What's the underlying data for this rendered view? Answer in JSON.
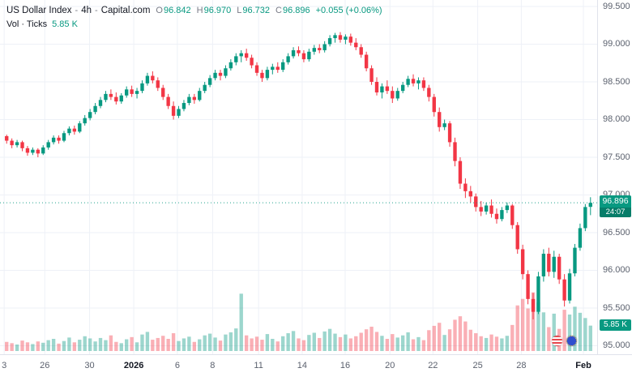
{
  "header": {
    "symbol": "US Dollar Index",
    "sep": "-",
    "interval": "4h",
    "provider": "Capital.com",
    "ohlc": [
      {
        "label": "O",
        "value": "96.842"
      },
      {
        "label": "H",
        "value": "96.970"
      },
      {
        "label": "L",
        "value": "96.732"
      },
      {
        "label": "C",
        "value": "96.896"
      }
    ],
    "change": "+0.055 (+0.06%)"
  },
  "volume_indicator": {
    "label": "Vol · Ticks",
    "value": "5.85 K"
  },
  "price_axis": {
    "price_badge": {
      "price": "96.896",
      "countdown": "24:07"
    },
    "volume_badge": "5.85 K"
  },
  "time_axis": {
    "labels": [
      {
        "t": "3",
        "p": 0.007
      },
      {
        "t": "26",
        "p": 0.075
      },
      {
        "t": "30",
        "p": 0.15
      },
      {
        "t": "2026",
        "p": 0.224,
        "major": true
      },
      {
        "t": "6",
        "p": 0.297
      },
      {
        "t": "8",
        "p": 0.356
      },
      {
        "t": "11",
        "p": 0.433
      },
      {
        "t": "14",
        "p": 0.506
      },
      {
        "t": "16",
        "p": 0.578
      },
      {
        "t": "20",
        "p": 0.653
      },
      {
        "t": "22",
        "p": 0.725
      },
      {
        "t": "25",
        "p": 0.8
      },
      {
        "t": "28",
        "p": 0.873
      },
      {
        "t": "Feb",
        "p": 0.977,
        "major": true
      }
    ]
  },
  "icons": {
    "us_event": "us-flag-circle",
    "eu_event": "eu-flag-circle"
  },
  "colors": {
    "up": "#089981",
    "down": "#f23645",
    "vol_up": "rgba(8,153,129,0.40)",
    "vol_down": "rgba(242,54,69,0.40)",
    "grid": "#eef1f7",
    "axis_text": "#5b616e",
    "background": "#ffffff"
  },
  "chart_data": {
    "type": "candlestick",
    "title": "US Dollar Index - 4h - Capital.com",
    "current_price": "96.896",
    "price_line": 96.896,
    "y_axis": {
      "max": 99.5,
      "min": 95.0,
      "ticks": [
        "99.500",
        "99.000",
        "98.500",
        "98.000",
        "97.500",
        "97.000",
        "96.500",
        "96.000",
        "95.500",
        "95.000"
      ]
    },
    "volume_axis": {
      "max": 14
    },
    "last_candle": {
      "o": 96.842,
      "h": 96.97,
      "l": 96.732,
      "c": 96.896,
      "volume_k": 5.85
    },
    "candles": [
      [
        97.78,
        97.8,
        97.68,
        97.72,
        2.1
      ],
      [
        97.72,
        97.75,
        97.62,
        97.66,
        1.8
      ],
      [
        97.66,
        97.73,
        97.63,
        97.7,
        1.5
      ],
      [
        97.7,
        97.72,
        97.58,
        97.62,
        2.4
      ],
      [
        97.62,
        97.65,
        97.52,
        97.56,
        2.0
      ],
      [
        97.56,
        97.63,
        97.53,
        97.6,
        1.6
      ],
      [
        97.6,
        97.62,
        97.5,
        97.55,
        2.2
      ],
      [
        97.55,
        97.66,
        97.53,
        97.63,
        1.9
      ],
      [
        97.63,
        97.73,
        97.6,
        97.7,
        2.5
      ],
      [
        97.7,
        97.79,
        97.67,
        97.76,
        2.8
      ],
      [
        97.76,
        97.79,
        97.68,
        97.72,
        1.7
      ],
      [
        97.72,
        97.85,
        97.7,
        97.82,
        2.3
      ],
      [
        97.82,
        97.91,
        97.79,
        97.88,
        3.1
      ],
      [
        97.88,
        97.92,
        97.8,
        97.84,
        2.0
      ],
      [
        97.84,
        97.98,
        97.82,
        97.95,
        2.6
      ],
      [
        97.95,
        98.06,
        97.92,
        98.02,
        3.4
      ],
      [
        98.02,
        98.14,
        97.99,
        98.1,
        2.9
      ],
      [
        98.1,
        98.22,
        98.07,
        98.18,
        2.2
      ],
      [
        98.18,
        98.3,
        98.15,
        98.26,
        3.0
      ],
      [
        98.26,
        98.38,
        98.23,
        98.34,
        2.5
      ],
      [
        98.34,
        98.4,
        98.26,
        98.3,
        3.6
      ],
      [
        98.3,
        98.36,
        98.2,
        98.24,
        2.1
      ],
      [
        98.24,
        98.35,
        98.21,
        98.32,
        1.8
      ],
      [
        98.32,
        98.44,
        98.29,
        98.4,
        2.7
      ],
      [
        98.4,
        98.45,
        98.3,
        98.34,
        3.2
      ],
      [
        98.34,
        98.42,
        98.28,
        98.38,
        2.0
      ],
      [
        98.38,
        98.52,
        98.35,
        98.48,
        3.8
      ],
      [
        98.48,
        98.62,
        98.45,
        98.58,
        4.4
      ],
      [
        98.58,
        98.64,
        98.48,
        98.52,
        2.6
      ],
      [
        98.52,
        98.56,
        98.38,
        98.42,
        3.0
      ],
      [
        98.42,
        98.46,
        98.26,
        98.3,
        3.5
      ],
      [
        98.3,
        98.34,
        98.14,
        98.18,
        2.8
      ],
      [
        98.18,
        98.24,
        98.0,
        98.05,
        4.1
      ],
      [
        98.05,
        98.18,
        98.02,
        98.14,
        2.3
      ],
      [
        98.14,
        98.26,
        98.11,
        98.22,
        2.9
      ],
      [
        98.22,
        98.34,
        98.19,
        98.3,
        3.3
      ],
      [
        98.3,
        98.34,
        98.21,
        98.26,
        2.1
      ],
      [
        98.26,
        98.42,
        98.24,
        98.38,
        2.7
      ],
      [
        98.38,
        98.5,
        98.35,
        98.46,
        3.6
      ],
      [
        98.46,
        98.59,
        98.43,
        98.55,
        4.0
      ],
      [
        98.55,
        98.66,
        98.52,
        98.62,
        3.1
      ],
      [
        98.62,
        98.66,
        98.52,
        98.58,
        2.4
      ],
      [
        98.58,
        98.72,
        98.55,
        98.68,
        3.8
      ],
      [
        98.68,
        98.8,
        98.65,
        98.76,
        4.3
      ],
      [
        98.76,
        98.88,
        98.72,
        98.84,
        5.2
      ],
      [
        98.84,
        98.92,
        98.76,
        98.88,
        13.2
      ],
      [
        98.88,
        98.94,
        98.78,
        98.82,
        3.6
      ],
      [
        98.82,
        98.86,
        98.68,
        98.72,
        2.9
      ],
      [
        98.72,
        98.76,
        98.58,
        98.62,
        3.3
      ],
      [
        98.62,
        98.66,
        98.5,
        98.55,
        2.6
      ],
      [
        98.55,
        98.7,
        98.52,
        98.66,
        3.9
      ],
      [
        98.66,
        98.74,
        98.6,
        98.7,
        2.8
      ],
      [
        98.7,
        98.76,
        98.62,
        98.66,
        2.2
      ],
      [
        98.66,
        98.8,
        98.63,
        98.76,
        3.4
      ],
      [
        98.76,
        98.88,
        98.73,
        98.84,
        4.1
      ],
      [
        98.84,
        98.96,
        98.81,
        98.92,
        4.6
      ],
      [
        98.92,
        98.97,
        98.84,
        98.88,
        2.9
      ],
      [
        98.88,
        98.92,
        98.76,
        98.8,
        2.5
      ],
      [
        98.8,
        98.94,
        98.77,
        98.9,
        3.7
      ],
      [
        98.9,
        98.99,
        98.86,
        98.95,
        4.2
      ],
      [
        98.95,
        99.0,
        98.88,
        98.92,
        3.0
      ],
      [
        98.92,
        99.04,
        98.89,
        99.0,
        4.5
      ],
      [
        99.0,
        99.12,
        98.97,
        99.08,
        5.1
      ],
      [
        99.08,
        99.15,
        99.02,
        99.12,
        4.0
      ],
      [
        99.12,
        99.16,
        99.02,
        99.06,
        3.2
      ],
      [
        99.06,
        99.13,
        99.0,
        99.1,
        3.8
      ],
      [
        99.1,
        99.14,
        98.98,
        99.02,
        2.9
      ],
      [
        99.02,
        99.08,
        98.92,
        98.96,
        3.4
      ],
      [
        98.96,
        99.0,
        98.82,
        98.86,
        4.2
      ],
      [
        98.86,
        98.9,
        98.64,
        98.68,
        5.0
      ],
      [
        98.68,
        98.72,
        98.46,
        98.5,
        5.6
      ],
      [
        98.5,
        98.56,
        98.32,
        98.36,
        4.4
      ],
      [
        98.36,
        98.48,
        98.28,
        98.44,
        3.5
      ],
      [
        98.44,
        98.52,
        98.34,
        98.38,
        2.8
      ],
      [
        98.38,
        98.44,
        98.22,
        98.28,
        3.9
      ],
      [
        98.28,
        98.42,
        98.25,
        98.38,
        3.1
      ],
      [
        98.38,
        98.5,
        98.35,
        98.46,
        3.6
      ],
      [
        98.46,
        98.58,
        98.43,
        98.54,
        4.3
      ],
      [
        98.54,
        98.6,
        98.44,
        98.48,
        2.7
      ],
      [
        98.48,
        98.56,
        98.4,
        98.52,
        3.2
      ],
      [
        98.52,
        98.56,
        98.38,
        98.42,
        2.5
      ],
      [
        98.42,
        98.46,
        98.24,
        98.3,
        4.8
      ],
      [
        98.3,
        98.34,
        98.04,
        98.1,
        5.8
      ],
      [
        98.1,
        98.16,
        97.84,
        97.9,
        6.5
      ],
      [
        97.9,
        98.0,
        97.86,
        97.95,
        3.7
      ],
      [
        97.95,
        97.98,
        97.64,
        97.7,
        5.0
      ],
      [
        97.7,
        97.76,
        97.38,
        97.45,
        7.2
      ],
      [
        97.45,
        97.5,
        97.08,
        97.15,
        8.0
      ],
      [
        97.15,
        97.22,
        96.96,
        97.05,
        6.8
      ],
      [
        97.05,
        97.12,
        96.9,
        96.98,
        4.9
      ],
      [
        96.98,
        97.02,
        96.78,
        96.84,
        4.1
      ],
      [
        96.84,
        96.92,
        96.72,
        96.78,
        3.4
      ],
      [
        96.78,
        96.9,
        96.74,
        96.86,
        3.0
      ],
      [
        96.86,
        96.94,
        96.7,
        96.75,
        3.8
      ],
      [
        96.75,
        96.82,
        96.62,
        96.68,
        3.3
      ],
      [
        96.68,
        96.84,
        96.65,
        96.8,
        2.9
      ],
      [
        96.8,
        96.9,
        96.76,
        96.86,
        3.5
      ],
      [
        96.86,
        96.88,
        96.55,
        96.6,
        6.0
      ],
      [
        96.6,
        96.64,
        96.22,
        96.28,
        10.5
      ],
      [
        96.28,
        96.34,
        95.88,
        95.95,
        12.0
      ],
      [
        95.95,
        96.0,
        95.55,
        95.62,
        9.8
      ],
      [
        95.62,
        95.7,
        95.35,
        95.45,
        13.5
      ],
      [
        95.45,
        95.98,
        95.42,
        95.92,
        11.2
      ],
      [
        95.92,
        96.28,
        95.85,
        96.22,
        8.9
      ],
      [
        96.22,
        96.3,
        95.92,
        95.98,
        5.5
      ],
      [
        95.98,
        96.26,
        95.9,
        96.18,
        8.6
      ],
      [
        96.18,
        96.22,
        95.82,
        95.88,
        5.1
      ],
      [
        95.88,
        95.95,
        95.52,
        95.6,
        9.5
      ],
      [
        95.6,
        96.02,
        95.56,
        95.96,
        8.4
      ],
      [
        95.96,
        96.35,
        95.92,
        96.3,
        10.2
      ],
      [
        96.3,
        96.62,
        96.26,
        96.56,
        8.8
      ],
      [
        96.56,
        96.88,
        96.52,
        96.84,
        7.6
      ],
      [
        96.842,
        96.97,
        96.732,
        96.896,
        5.85
      ]
    ]
  }
}
